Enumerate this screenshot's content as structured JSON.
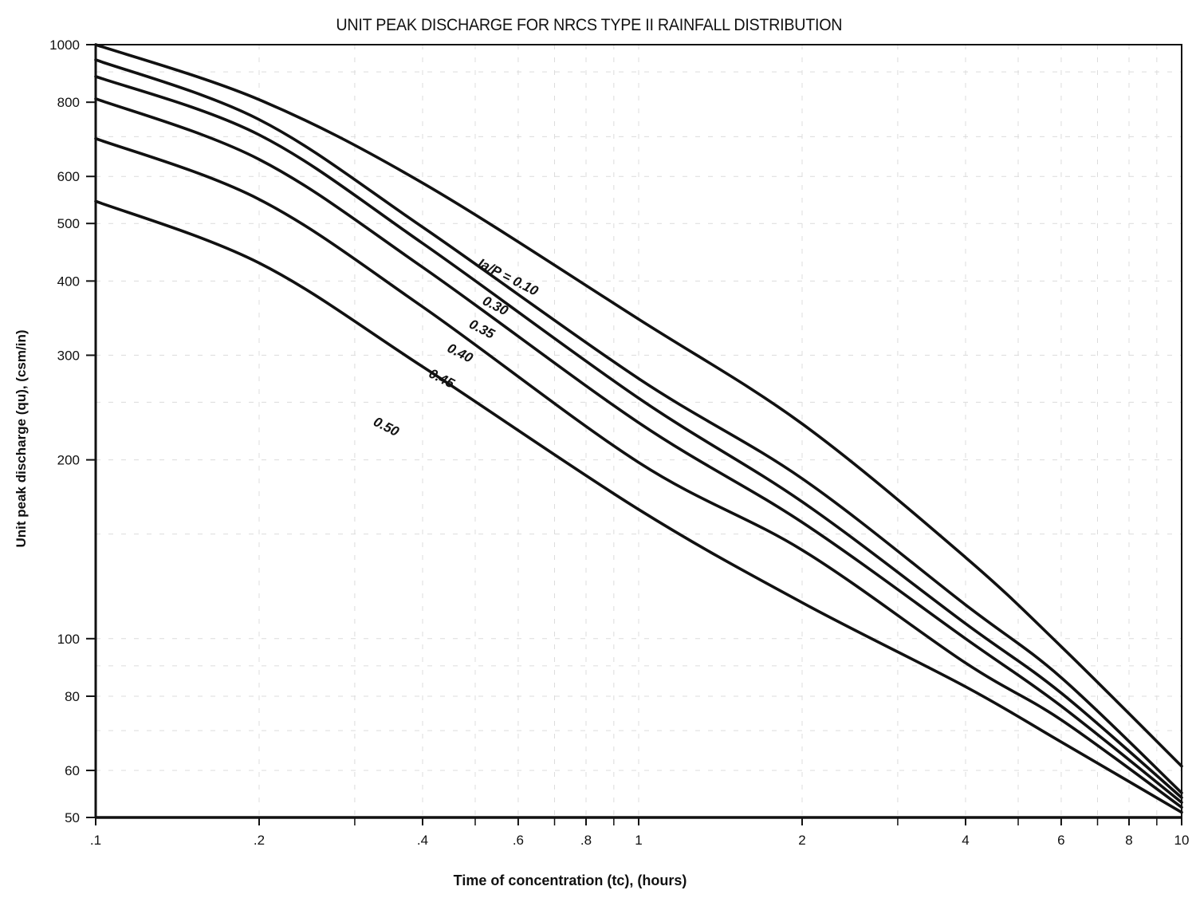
{
  "chart_data": {
    "type": "line",
    "title": "UNIT PEAK DISCHARGE FOR NRCS TYPE II RAINFALL DISTRIBUTION",
    "xlabel": "Time of concentration (tc), (hours)",
    "ylabel": "Unit peak discharge (qu), (csm/in)",
    "xscale": "log",
    "yscale": "log",
    "xlim": [
      0.1,
      10
    ],
    "ylim": [
      50,
      1000
    ],
    "grid": true,
    "legend_position": "inline curve labels",
    "x_ticks": [
      {
        "value": 0.1,
        "label": ".1"
      },
      {
        "value": 0.2,
        "label": ".2"
      },
      {
        "value": 0.4,
        "label": ".4"
      },
      {
        "value": 0.6,
        "label": ".6"
      },
      {
        "value": 0.8,
        "label": ".8"
      },
      {
        "value": 1,
        "label": "1"
      },
      {
        "value": 2,
        "label": "2"
      },
      {
        "value": 4,
        "label": "4"
      },
      {
        "value": 6,
        "label": "6"
      },
      {
        "value": 8,
        "label": "8"
      },
      {
        "value": 10,
        "label": "10"
      }
    ],
    "x_minor_ticks": [
      0.3,
      0.5,
      0.7,
      0.9,
      3,
      5,
      7,
      9
    ],
    "y_ticks": [
      {
        "value": 1000,
        "label": "1000"
      },
      {
        "value": 800,
        "label": "800"
      },
      {
        "value": 600,
        "label": "600"
      },
      {
        "value": 500,
        "label": "500"
      },
      {
        "value": 400,
        "label": "400"
      },
      {
        "value": 300,
        "label": "300"
      },
      {
        "value": 200,
        "label": "200"
      },
      {
        "value": 100,
        "label": "100"
      },
      {
        "value": 80,
        "label": "80"
      },
      {
        "value": 60,
        "label": "60"
      },
      {
        "value": 50,
        "label": "50"
      }
    ],
    "x": [
      0.1,
      0.2,
      0.4,
      1,
      2,
      4,
      6,
      10
    ],
    "series": [
      {
        "name": "Ia/P = 0.10",
        "label": "Ia/P = 0.10",
        "values": [
          1000,
          808,
          585,
          345,
          230,
          137,
          97,
          61
        ],
        "label_at": {
          "x": 0.57,
          "y": 400,
          "angle": 27
        }
      },
      {
        "name": "0.30",
        "label": "0.30",
        "values": [
          943,
          748,
          493,
          274,
          186,
          114,
          86,
          55
        ],
        "label_at": {
          "x": 0.54,
          "y": 358,
          "angle": 27
        }
      },
      {
        "name": "0.35",
        "label": "0.35",
        "values": [
          884,
          705,
          463,
          254,
          170,
          106,
          81,
          54
        ],
        "label_at": {
          "x": 0.51,
          "y": 327,
          "angle": 27
        }
      },
      {
        "name": "0.40",
        "label": "0.40",
        "values": [
          811,
          641,
          422,
          231,
          157,
          100,
          77,
          53
        ],
        "label_at": {
          "x": 0.465,
          "y": 298,
          "angle": 27
        }
      },
      {
        "name": "0.45",
        "label": "0.45",
        "values": [
          695,
          549,
          362,
          198,
          141,
          91,
          73,
          52
        ],
        "label_at": {
          "x": 0.43,
          "y": 270,
          "angle": 27
        }
      },
      {
        "name": "0.50",
        "label": "0.50",
        "values": [
          545,
          429,
          287,
          165,
          115,
          83,
          67,
          51
        ],
        "label_at": {
          "x": 0.34,
          "y": 224,
          "angle": 27
        }
      }
    ]
  },
  "colors": {
    "curve": "#111111",
    "axis": "#111111",
    "grid": "#dcdcdc",
    "background": "#ffffff"
  },
  "labels": {
    "title": "UNIT PEAK DISCHARGE FOR NRCS TYPE II RAINFALL DISTRIBUTION",
    "xlabel": "Time of concentration (tc), (hours)",
    "ylabel": "Unit peak discharge (qu), (csm/in)"
  }
}
